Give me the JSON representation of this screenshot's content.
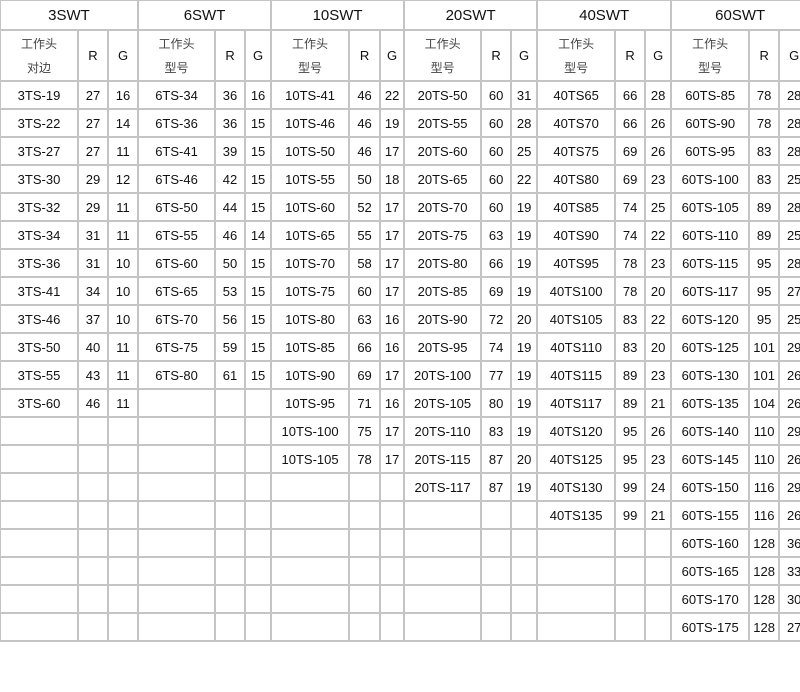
{
  "groups": [
    {
      "title": "3SWT",
      "sub_label": [
        "工作头",
        "对边"
      ],
      "r_label": "R",
      "g_label": "G",
      "rows": [
        [
          "3TS-19",
          "27",
          "16"
        ],
        [
          "3TS-22",
          "27",
          "14"
        ],
        [
          "3TS-27",
          "27",
          "11"
        ],
        [
          "3TS-30",
          "29",
          "12"
        ],
        [
          "3TS-32",
          "29",
          "11"
        ],
        [
          "3TS-34",
          "31",
          "11"
        ],
        [
          "3TS-36",
          "31",
          "10"
        ],
        [
          "3TS-41",
          "34",
          "10"
        ],
        [
          "3TS-46",
          "37",
          "10"
        ],
        [
          "3TS-50",
          "40",
          "11"
        ],
        [
          "3TS-55",
          "43",
          "11"
        ],
        [
          "3TS-60",
          "46",
          "11"
        ]
      ]
    },
    {
      "title": "6SWT",
      "sub_label": [
        "工作头",
        "型号"
      ],
      "r_label": "R",
      "g_label": "G",
      "rows": [
        [
          "6TS-34",
          "36",
          "16"
        ],
        [
          "6TS-36",
          "36",
          "15"
        ],
        [
          "6TS-41",
          "39",
          "15"
        ],
        [
          "6TS-46",
          "42",
          "15"
        ],
        [
          "6TS-50",
          "44",
          "15"
        ],
        [
          "6TS-55",
          "46",
          "14"
        ],
        [
          "6TS-60",
          "50",
          "15"
        ],
        [
          "6TS-65",
          "53",
          "15"
        ],
        [
          "6TS-70",
          "56",
          "15"
        ],
        [
          "6TS-75",
          "59",
          "15"
        ],
        [
          "6TS-80",
          "61",
          "15"
        ]
      ]
    },
    {
      "title": "10SWT",
      "sub_label": [
        "工作头",
        "型号"
      ],
      "r_label": "R",
      "g_label": "G",
      "rows": [
        [
          "10TS-41",
          "46",
          "22"
        ],
        [
          "10TS-46",
          "46",
          "19"
        ],
        [
          "10TS-50",
          "46",
          "17"
        ],
        [
          "10TS-55",
          "50",
          "18"
        ],
        [
          "10TS-60",
          "52",
          "17"
        ],
        [
          "10TS-65",
          "55",
          "17"
        ],
        [
          "10TS-70",
          "58",
          "17"
        ],
        [
          "10TS-75",
          "60",
          "17"
        ],
        [
          "10TS-80",
          "63",
          "16"
        ],
        [
          "10TS-85",
          "66",
          "16"
        ],
        [
          "10TS-90",
          "69",
          "17"
        ],
        [
          "10TS-95",
          "71",
          "16"
        ],
        [
          "10TS-100",
          "75",
          "17"
        ],
        [
          "10TS-105",
          "78",
          "17"
        ]
      ]
    },
    {
      "title": "20SWT",
      "sub_label": [
        "工作头",
        "型号"
      ],
      "r_label": "R",
      "g_label": "G",
      "rows": [
        [
          "20TS-50",
          "60",
          "31"
        ],
        [
          "20TS-55",
          "60",
          "28"
        ],
        [
          "20TS-60",
          "60",
          "25"
        ],
        [
          "20TS-65",
          "60",
          "22"
        ],
        [
          "20TS-70",
          "60",
          "19"
        ],
        [
          "20TS-75",
          "63",
          "19"
        ],
        [
          "20TS-80",
          "66",
          "19"
        ],
        [
          "20TS-85",
          "69",
          "19"
        ],
        [
          "20TS-90",
          "72",
          "20"
        ],
        [
          "20TS-95",
          "74",
          "19"
        ],
        [
          "20TS-100",
          "77",
          "19"
        ],
        [
          "20TS-105",
          "80",
          "19"
        ],
        [
          "20TS-110",
          "83",
          "19"
        ],
        [
          "20TS-115",
          "87",
          "20"
        ],
        [
          "20TS-117",
          "87",
          "19"
        ]
      ]
    },
    {
      "title": "40SWT",
      "sub_label": [
        "工作头",
        "型号"
      ],
      "r_label": "R",
      "g_label": "G",
      "rows": [
        [
          "40TS65",
          "66",
          "28"
        ],
        [
          "40TS70",
          "66",
          "26"
        ],
        [
          "40TS75",
          "69",
          "26"
        ],
        [
          "40TS80",
          "69",
          "23"
        ],
        [
          "40TS85",
          "74",
          "25"
        ],
        [
          "40TS90",
          "74",
          "22"
        ],
        [
          "40TS95",
          "78",
          "23"
        ],
        [
          "40TS100",
          "78",
          "20"
        ],
        [
          "40TS105",
          "83",
          "22"
        ],
        [
          "40TS110",
          "83",
          "20"
        ],
        [
          "40TS115",
          "89",
          "23"
        ],
        [
          "40TS117",
          "89",
          "21"
        ],
        [
          "40TS120",
          "95",
          "26"
        ],
        [
          "40TS125",
          "95",
          "23"
        ],
        [
          "40TS130",
          "99",
          "24"
        ],
        [
          "40TS135",
          "99",
          "21"
        ]
      ]
    },
    {
      "title": "60SWT",
      "sub_label": [
        "工作头",
        "型号"
      ],
      "r_label": "R",
      "g_label": "G",
      "rows": [
        [
          "60TS-85",
          "78",
          "28"
        ],
        [
          "60TS-90",
          "78",
          "28"
        ],
        [
          "60TS-95",
          "83",
          "28"
        ],
        [
          "60TS-100",
          "83",
          "25"
        ],
        [
          "60TS-105",
          "89",
          "28"
        ],
        [
          "60TS-110",
          "89",
          "25"
        ],
        [
          "60TS-115",
          "95",
          "28"
        ],
        [
          "60TS-117",
          "95",
          "27"
        ],
        [
          "60TS-120",
          "95",
          "25"
        ],
        [
          "60TS-125",
          "101",
          "29"
        ],
        [
          "60TS-130",
          "101",
          "26"
        ],
        [
          "60TS-135",
          "104",
          "26"
        ],
        [
          "60TS-140",
          "110",
          "29"
        ],
        [
          "60TS-145",
          "110",
          "26"
        ],
        [
          "60TS-150",
          "116",
          "29"
        ],
        [
          "60TS-155",
          "116",
          "26"
        ],
        [
          "60TS-160",
          "128",
          "36"
        ],
        [
          "60TS-165",
          "128",
          "33"
        ],
        [
          "60TS-170",
          "128",
          "30"
        ],
        [
          "60TS-175",
          "128",
          "27"
        ]
      ]
    }
  ]
}
